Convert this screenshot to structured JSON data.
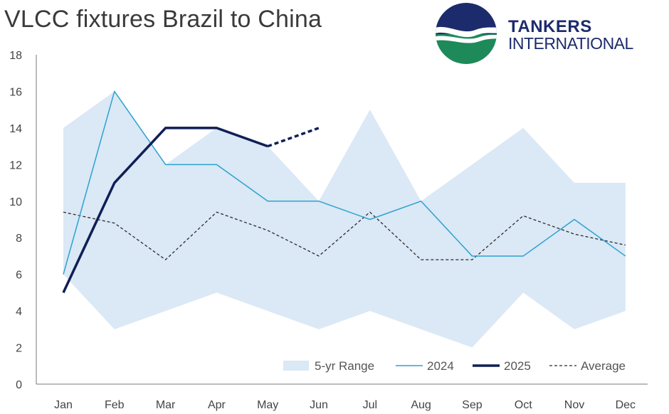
{
  "header": {
    "title": "VLCC fixtures Brazil to China"
  },
  "logo": {
    "line1": "TANKERS",
    "line2": "INTERNATIONAL",
    "colors": {
      "navy": "#1c2b6b",
      "green": "#1e8a5a",
      "wave": "#ffffff"
    }
  },
  "chart_data": {
    "type": "line",
    "categories": [
      "Jan",
      "Feb",
      "Mar",
      "Apr",
      "May",
      "Jun",
      "Jul",
      "Aug",
      "Sep",
      "Oct",
      "Nov",
      "Dec"
    ],
    "ylim": [
      0,
      18
    ],
    "yticks": [
      0,
      2,
      4,
      6,
      8,
      10,
      12,
      14,
      16,
      18
    ],
    "grid": false,
    "legend_position": "bottom-right",
    "range": {
      "name": "5-yr Range",
      "low": [
        6,
        3,
        4,
        5,
        4,
        3,
        4,
        3,
        2,
        5,
        3,
        4
      ],
      "high": [
        14,
        16,
        12,
        14,
        13,
        10,
        15,
        10,
        12,
        14,
        11,
        11
      ],
      "color": "#dbe8f5"
    },
    "series": [
      {
        "name": "2024",
        "values": [
          6,
          16,
          12,
          12,
          10,
          10,
          9,
          10,
          7,
          7,
          9,
          7
        ],
        "color": "#2aa3cf",
        "style": "solid-thin"
      },
      {
        "name": "2025",
        "values": [
          5,
          11,
          14,
          14,
          13,
          14,
          null,
          null,
          null,
          null,
          null,
          null
        ],
        "color": "#0f1f55",
        "style": "solid-thick",
        "dashed_from_index": 4
      },
      {
        "name": "Average",
        "values": [
          9.4,
          8.8,
          6.8,
          9.4,
          8.4,
          7.0,
          9.4,
          6.8,
          6.8,
          9.2,
          8.2,
          7.6
        ],
        "color": "#2b2b2b",
        "style": "dashed"
      }
    ]
  }
}
